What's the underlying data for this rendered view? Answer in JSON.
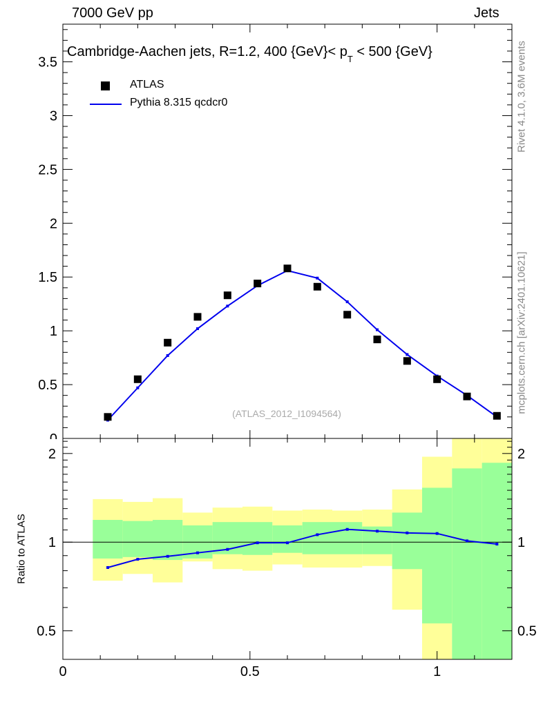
{
  "header": {
    "left": "7000 GeV pp",
    "right": "Jets"
  },
  "side_labels": {
    "rivet": "Rivet 4.1.0,  3.6M events",
    "mcplots": "mcplots.cern.ch [arXiv:2401.10621]"
  },
  "colors": {
    "data": "#000000",
    "mc": "#0000ee",
    "band_inner": "#99ff99",
    "band_outer": "#ffff99"
  },
  "chart_data": {
    "type": "line",
    "title_parts": {
      "main": "Cambridge-Aachen jets, R=1.2,  400 {GeV}< p",
      "sub": "T",
      "tail": " < 500 {GeV}"
    },
    "watermark": "(ATLAS_2012_I1094564)",
    "legend": {
      "data_label": "ATLAS",
      "mc_label": "Pythia 8.315 qcdcr0",
      "placement": "top-left"
    },
    "xlim": [
      0,
      1.2
    ],
    "ylim_main": [
      0,
      3.85
    ],
    "ylim_ratio": [
      0.4,
      2.25
    ],
    "xticks": [
      0,
      0.5,
      1
    ],
    "xtick_labels": [
      "0",
      "0.5",
      "1"
    ],
    "yticks_main": [
      0,
      0.5,
      1,
      1.5,
      2,
      2.5,
      3,
      3.5
    ],
    "ytick_labels_main": [
      "0",
      "0.5",
      "1",
      "1.5",
      "2",
      "2.5",
      "3",
      "3.5"
    ],
    "yticks_ratio": [
      0.5,
      1,
      2
    ],
    "ytick_labels_ratio": [
      "0.5",
      "1",
      "2"
    ],
    "ratio_ylabel": "Ratio to ATLAS",
    "bin_edges": [
      0.08,
      0.16,
      0.24,
      0.32,
      0.4,
      0.48,
      0.56,
      0.64,
      0.72,
      0.8,
      0.88,
      0.96,
      1.04,
      1.12,
      1.2
    ],
    "data": {
      "name": "ATLAS",
      "x": [
        0.12,
        0.2,
        0.28,
        0.36,
        0.44,
        0.52,
        0.6,
        0.68,
        0.76,
        0.84,
        0.92,
        1.0,
        1.08,
        1.16
      ],
      "y": [
        0.2,
        0.55,
        0.89,
        1.13,
        1.33,
        1.44,
        1.58,
        1.41,
        1.15,
        0.92,
        0.72,
        0.55,
        0.39,
        0.21
      ]
    },
    "mc": {
      "name": "Pythia 8.315 qcdcr0",
      "x": [
        0.12,
        0.2,
        0.28,
        0.36,
        0.44,
        0.52,
        0.6,
        0.68,
        0.76,
        0.84,
        0.92,
        1.0,
        1.08,
        1.16
      ],
      "y": [
        0.17,
        0.47,
        0.77,
        1.02,
        1.23,
        1.42,
        1.56,
        1.49,
        1.27,
        1.01,
        0.78,
        0.58,
        0.4,
        0.2
      ]
    },
    "ratio": {
      "x": [
        0.12,
        0.2,
        0.28,
        0.36,
        0.44,
        0.52,
        0.6,
        0.68,
        0.76,
        0.84,
        0.92,
        1.0,
        1.08,
        1.16
      ],
      "y": [
        0.82,
        0.875,
        0.895,
        0.92,
        0.945,
        0.995,
        0.995,
        1.06,
        1.105,
        1.09,
        1.075,
        1.07,
        1.01,
        0.985
      ],
      "band_inner_lo": [
        0.88,
        0.89,
        0.87,
        0.88,
        0.91,
        0.905,
        0.92,
        0.91,
        0.91,
        0.91,
        0.81,
        0.53,
        0.4,
        0.4
      ],
      "band_inner_hi": [
        1.19,
        1.18,
        1.19,
        1.14,
        1.17,
        1.17,
        1.14,
        1.17,
        1.17,
        1.13,
        1.26,
        1.53,
        1.78,
        1.86
      ],
      "band_outer_lo": [
        0.74,
        0.78,
        0.73,
        0.86,
        0.81,
        0.8,
        0.84,
        0.82,
        0.82,
        0.83,
        0.59,
        0.4,
        0.4,
        0.4
      ],
      "band_outer_hi": [
        1.4,
        1.37,
        1.41,
        1.26,
        1.31,
        1.32,
        1.28,
        1.29,
        1.28,
        1.29,
        1.51,
        1.95,
        2.25,
        2.25
      ]
    }
  }
}
